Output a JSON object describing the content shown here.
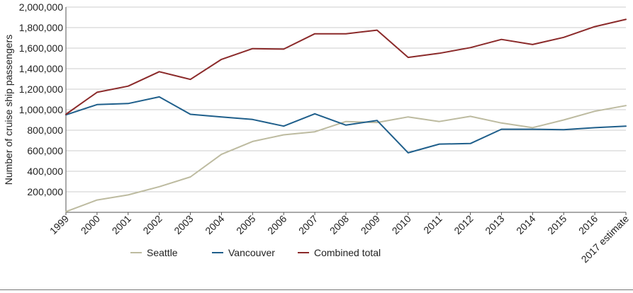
{
  "chart_data": {
    "type": "line",
    "title": "",
    "xlabel": "",
    "ylabel": "Number of cruise ship passengers",
    "categories": [
      "1999",
      "2000",
      "2001",
      "2002",
      "2003",
      "2004",
      "2005",
      "2006",
      "2007",
      "2008",
      "2009",
      "2010",
      "2011",
      "2012",
      "2013",
      "2014",
      "2015",
      "2016",
      "2017 estimate"
    ],
    "ylim": [
      0,
      2000000
    ],
    "yticks": [
      200000,
      400000,
      600000,
      800000,
      1000000,
      1200000,
      1400000,
      1600000,
      1800000,
      2000000
    ],
    "ytick_labels": [
      "200,000",
      "400,000",
      "600,000",
      "800,000",
      "1,000,000",
      "1,200,000",
      "1,400,000",
      "1,600,000",
      "1,800,000",
      "2,000,000"
    ],
    "grid": true,
    "legend_position": "bottom",
    "series": [
      {
        "name": "Seattle",
        "color": "#bdbba0",
        "values": [
          6000,
          120000,
          170000,
          250000,
          345000,
          565000,
          690000,
          755000,
          785000,
          885000,
          875000,
          930000,
          885000,
          935000,
          870000,
          825000,
          900000,
          985000,
          1040000
        ]
      },
      {
        "name": "Vancouver",
        "color": "#1f5f8b",
        "values": [
          950000,
          1050000,
          1060000,
          1125000,
          955000,
          930000,
          905000,
          840000,
          960000,
          850000,
          895000,
          580000,
          665000,
          670000,
          810000,
          810000,
          805000,
          825000,
          840000
        ]
      },
      {
        "name": "Combined total",
        "color": "#8b2a2a",
        "values": [
          955000,
          1170000,
          1230000,
          1370000,
          1295000,
          1490000,
          1595000,
          1590000,
          1740000,
          1740000,
          1775000,
          1510000,
          1550000,
          1605000,
          1685000,
          1635000,
          1705000,
          1810000,
          1880000
        ]
      }
    ]
  }
}
